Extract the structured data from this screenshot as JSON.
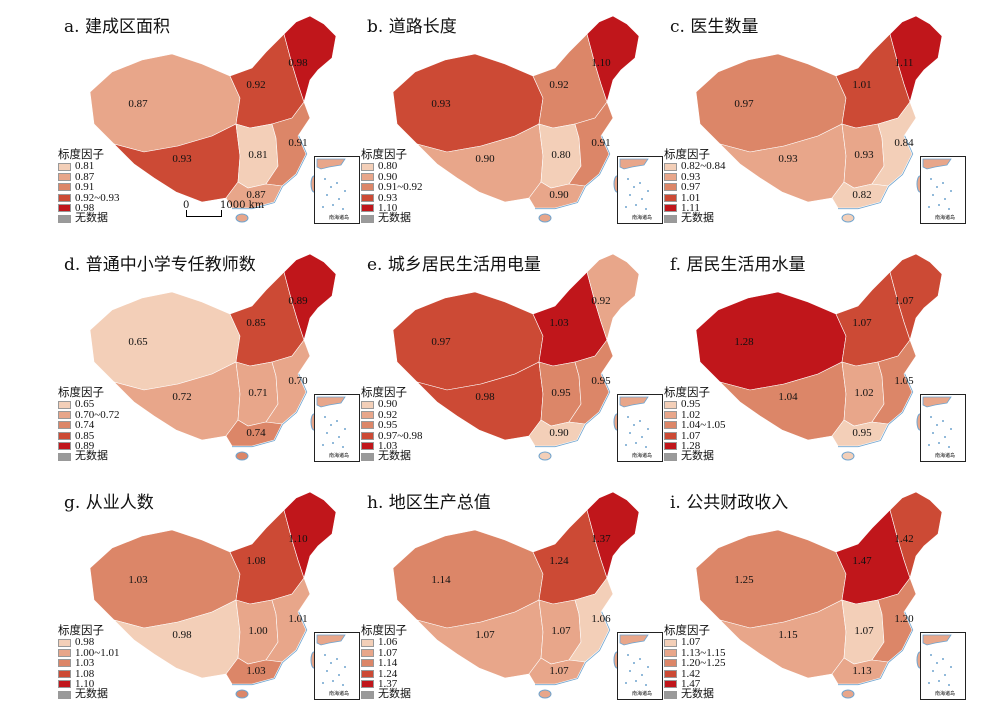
{
  "legend_title": "标度因子",
  "no_data_label": "无数据",
  "inset_label": "南海诸岛",
  "scale": {
    "start": "0",
    "end": "1000 km"
  },
  "colors": {
    "lightest": "#f3cfb8",
    "light": "#e8a68a",
    "mid": "#dc8668",
    "dark": "#cc4a35",
    "darkest": "#c0161b",
    "nodata": "#9a9a9a",
    "coast": "#6fa4cf"
  },
  "panels": [
    {
      "id": "a",
      "title": "a. 建成区面积",
      "legend": [
        "0.81",
        "0.87",
        "0.91",
        "0.92~0.93",
        "0.98"
      ],
      "regions": {
        "northwest": {
          "v": "0.87",
          "c": "light"
        },
        "north": {
          "v": "0.92",
          "c": "dark"
        },
        "northeast": {
          "v": "0.98",
          "c": "darkest"
        },
        "southwest": {
          "v": "0.93",
          "c": "dark"
        },
        "central": {
          "v": "0.81",
          "c": "lightest"
        },
        "east": {
          "v": "0.91",
          "c": "mid"
        },
        "south": {
          "v": "0.87",
          "c": "light"
        }
      }
    },
    {
      "id": "b",
      "title": "b. 道路长度",
      "legend": [
        "0.80",
        "0.90",
        "0.91~0.92",
        "0.93",
        "1.10"
      ],
      "regions": {
        "northwest": {
          "v": "0.93",
          "c": "dark"
        },
        "north": {
          "v": "0.92",
          "c": "mid"
        },
        "northeast": {
          "v": "1.10",
          "c": "darkest"
        },
        "southwest": {
          "v": "0.90",
          "c": "light"
        },
        "central": {
          "v": "0.80",
          "c": "lightest"
        },
        "east": {
          "v": "0.91",
          "c": "mid"
        },
        "south": {
          "v": "0.90",
          "c": "light"
        }
      }
    },
    {
      "id": "c",
      "title": "c. 医生数量",
      "legend": [
        "0.82~0.84",
        "0.93",
        "0.97",
        "1.01",
        "1.11"
      ],
      "regions": {
        "northwest": {
          "v": "0.97",
          "c": "mid"
        },
        "north": {
          "v": "1.01",
          "c": "dark"
        },
        "northeast": {
          "v": "1.11",
          "c": "darkest"
        },
        "southwest": {
          "v": "0.93",
          "c": "light"
        },
        "central": {
          "v": "0.93",
          "c": "light"
        },
        "east": {
          "v": "0.84",
          "c": "lightest"
        },
        "south": {
          "v": "0.82",
          "c": "lightest"
        }
      }
    },
    {
      "id": "d",
      "title": "d. 普通中小学专任教师数",
      "legend": [
        "0.65",
        "0.70~0.72",
        "0.74",
        "0.85",
        "0.89"
      ],
      "regions": {
        "northwest": {
          "v": "0.65",
          "c": "lightest"
        },
        "north": {
          "v": "0.85",
          "c": "dark"
        },
        "northeast": {
          "v": "0.89",
          "c": "darkest"
        },
        "southwest": {
          "v": "0.72",
          "c": "light"
        },
        "central": {
          "v": "0.71",
          "c": "light"
        },
        "east": {
          "v": "0.70",
          "c": "light"
        },
        "south": {
          "v": "0.74",
          "c": "mid"
        }
      }
    },
    {
      "id": "e",
      "title": "e. 城乡居民生活用电量",
      "legend": [
        "0.90",
        "0.92",
        "0.95",
        "0.97~0.98",
        "1.03"
      ],
      "regions": {
        "northwest": {
          "v": "0.97",
          "c": "dark"
        },
        "north": {
          "v": "1.03",
          "c": "darkest"
        },
        "northeast": {
          "v": "0.92",
          "c": "light"
        },
        "southwest": {
          "v": "0.98",
          "c": "dark"
        },
        "central": {
          "v": "0.95",
          "c": "mid"
        },
        "east": {
          "v": "0.95",
          "c": "mid"
        },
        "south": {
          "v": "0.90",
          "c": "lightest"
        }
      }
    },
    {
      "id": "f",
      "title": "f. 居民生活用水量",
      "legend": [
        "0.95",
        "1.02",
        "1.04~1.05",
        "1.07",
        "1.28"
      ],
      "regions": {
        "northwest": {
          "v": "1.28",
          "c": "darkest"
        },
        "north": {
          "v": "1.07",
          "c": "dark"
        },
        "northeast": {
          "v": "1.07",
          "c": "dark"
        },
        "southwest": {
          "v": "1.04",
          "c": "mid"
        },
        "central": {
          "v": "1.02",
          "c": "light"
        },
        "east": {
          "v": "1.05",
          "c": "mid"
        },
        "south": {
          "v": "0.95",
          "c": "lightest"
        }
      }
    },
    {
      "id": "g",
      "title": "g. 从业人数",
      "legend": [
        "0.98",
        "1.00~1.01",
        "1.03",
        "1.08",
        "1.10"
      ],
      "regions": {
        "northwest": {
          "v": "1.03",
          "c": "mid"
        },
        "north": {
          "v": "1.08",
          "c": "dark"
        },
        "northeast": {
          "v": "1.10",
          "c": "darkest"
        },
        "southwest": {
          "v": "0.98",
          "c": "lightest"
        },
        "central": {
          "v": "1.00",
          "c": "light"
        },
        "east": {
          "v": "1.01",
          "c": "light"
        },
        "south": {
          "v": "1.03",
          "c": "mid"
        }
      }
    },
    {
      "id": "h",
      "title": "h. 地区生产总值",
      "legend": [
        "1.06",
        "1.07",
        "1.14",
        "1.24",
        "1.37"
      ],
      "regions": {
        "northwest": {
          "v": "1.14",
          "c": "mid"
        },
        "north": {
          "v": "1.24",
          "c": "dark"
        },
        "northeast": {
          "v": "1.37",
          "c": "darkest"
        },
        "southwest": {
          "v": "1.07",
          "c": "light"
        },
        "central": {
          "v": "1.07",
          "c": "light"
        },
        "east": {
          "v": "1.06",
          "c": "lightest"
        },
        "south": {
          "v": "1.07",
          "c": "light"
        }
      }
    },
    {
      "id": "i",
      "title": "i. 公共财政收入",
      "legend": [
        "1.07",
        "1.13~1.15",
        "1.20~1.25",
        "1.42",
        "1.47"
      ],
      "regions": {
        "northwest": {
          "v": "1.25",
          "c": "mid"
        },
        "north": {
          "v": "1.47",
          "c": "darkest"
        },
        "northeast": {
          "v": "1.42",
          "c": "dark"
        },
        "southwest": {
          "v": "1.15",
          "c": "light"
        },
        "central": {
          "v": "1.07",
          "c": "lightest"
        },
        "east": {
          "v": "1.20",
          "c": "mid"
        },
        "south": {
          "v": "1.13",
          "c": "light"
        }
      }
    }
  ]
}
